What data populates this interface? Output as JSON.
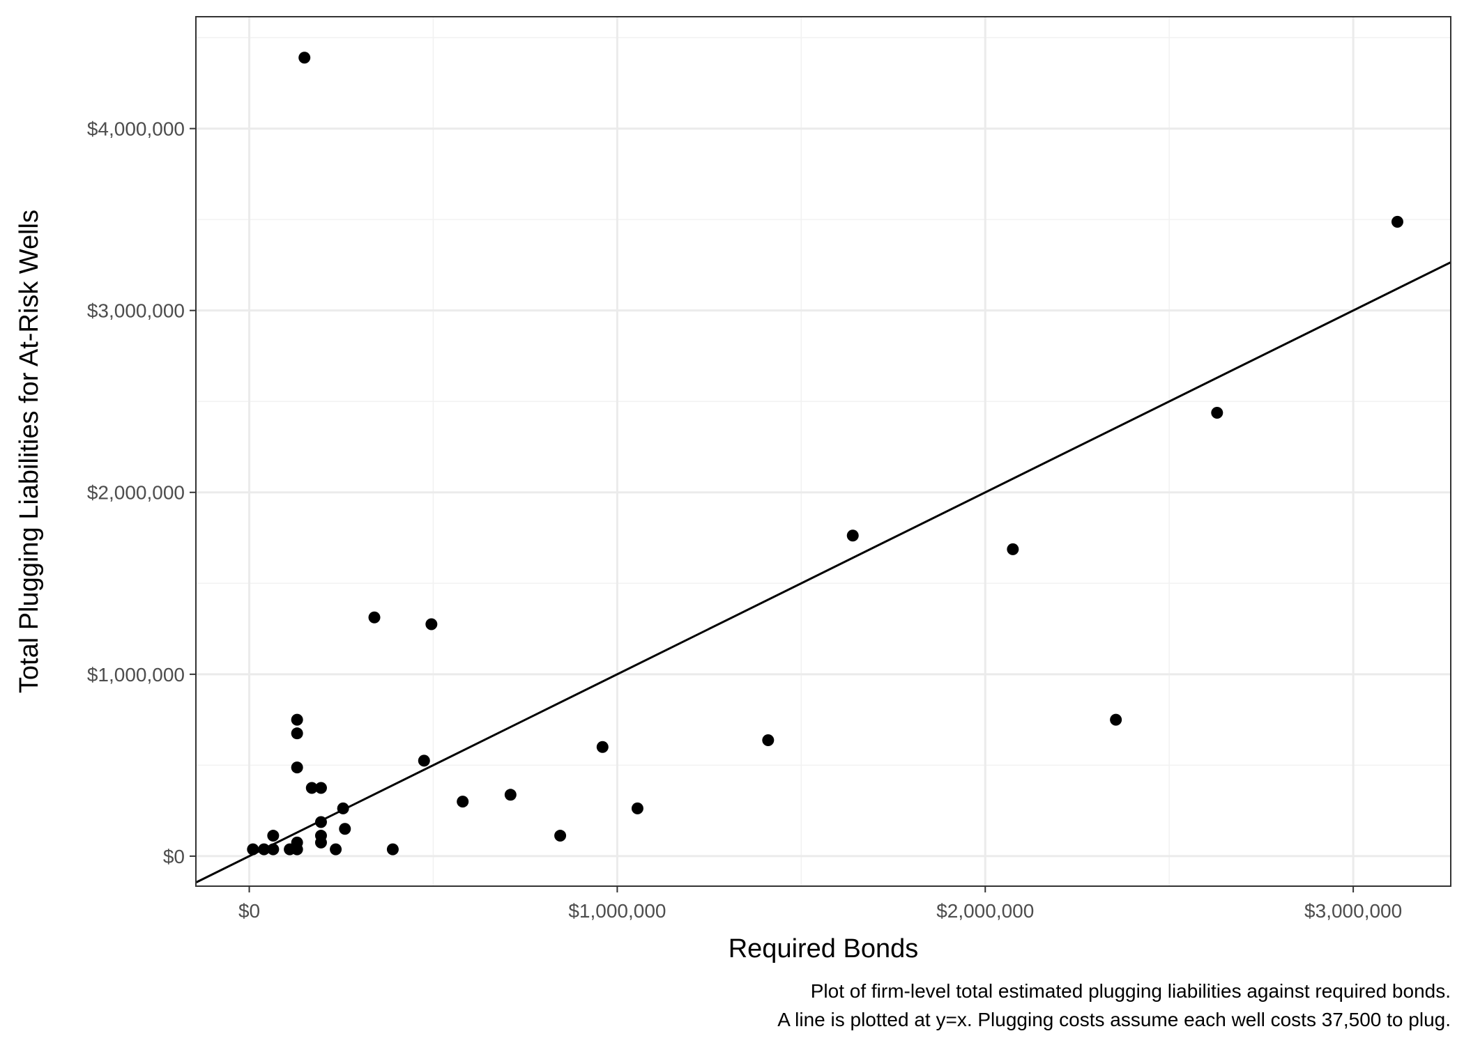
{
  "chart_data": {
    "type": "scatter",
    "title": "",
    "xlabel": "Required Bonds",
    "ylabel": "Total Plugging Liabilities for At-Risk Wells",
    "caption": [
      "Plot of firm-level total estimated plugging liabilities against required bonds.",
      "A line is plotted at y=x. Plugging costs assume each well costs 37,500 to plug."
    ],
    "xlim": [
      -145000,
      3265000
    ],
    "ylim": [
      -165000,
      4615000
    ],
    "x_ticks": [
      {
        "value": 0,
        "label": "$0"
      },
      {
        "value": 1000000,
        "label": "$1,000,000"
      },
      {
        "value": 2000000,
        "label": "$2,000,000"
      },
      {
        "value": 3000000,
        "label": "$3,000,000"
      }
    ],
    "y_ticks": [
      {
        "value": 0,
        "label": "$0"
      },
      {
        "value": 1000000,
        "label": "$1,000,000"
      },
      {
        "value": 2000000,
        "label": "$2,000,000"
      },
      {
        "value": 3000000,
        "label": "$3,000,000"
      },
      {
        "value": 4000000,
        "label": "$4,000,000"
      }
    ],
    "x_minor_gridlines": [
      500000,
      1500000,
      2500000
    ],
    "y_minor_gridlines": [
      500000,
      1500000,
      2500000,
      3500000,
      4500000
    ],
    "grid": true,
    "reference_line": {
      "kind": "y=x",
      "color": "#000000"
    },
    "point_color": "#000000",
    "panel_border_color": "#333333",
    "grid_major_color": "#ebebeb",
    "grid_minor_color": "#f2f2f2",
    "points": [
      {
        "x": 10000,
        "y": 37500
      },
      {
        "x": 40000,
        "y": 37500
      },
      {
        "x": 65000,
        "y": 37500
      },
      {
        "x": 65000,
        "y": 112500
      },
      {
        "x": 110000,
        "y": 37500
      },
      {
        "x": 130000,
        "y": 37500
      },
      {
        "x": 130000,
        "y": 75000
      },
      {
        "x": 130000,
        "y": 487500
      },
      {
        "x": 130000,
        "y": 675000
      },
      {
        "x": 130000,
        "y": 750000
      },
      {
        "x": 150000,
        "y": 4390000
      },
      {
        "x": 170000,
        "y": 375000
      },
      {
        "x": 195000,
        "y": 375000
      },
      {
        "x": 195000,
        "y": 187500
      },
      {
        "x": 195000,
        "y": 112500
      },
      {
        "x": 195000,
        "y": 75000
      },
      {
        "x": 235000,
        "y": 37500
      },
      {
        "x": 255000,
        "y": 262500
      },
      {
        "x": 260000,
        "y": 150000
      },
      {
        "x": 340000,
        "y": 1312500
      },
      {
        "x": 390000,
        "y": 37500
      },
      {
        "x": 475000,
        "y": 525000
      },
      {
        "x": 495000,
        "y": 1275000
      },
      {
        "x": 580000,
        "y": 300000
      },
      {
        "x": 710000,
        "y": 337500
      },
      {
        "x": 845000,
        "y": 112500
      },
      {
        "x": 960000,
        "y": 600000
      },
      {
        "x": 1055000,
        "y": 262500
      },
      {
        "x": 1410000,
        "y": 637500
      },
      {
        "x": 1640000,
        "y": 1762500
      },
      {
        "x": 2075000,
        "y": 1687500
      },
      {
        "x": 2355000,
        "y": 750000
      },
      {
        "x": 2630000,
        "y": 2437500
      },
      {
        "x": 3120000,
        "y": 3487500
      }
    ]
  }
}
